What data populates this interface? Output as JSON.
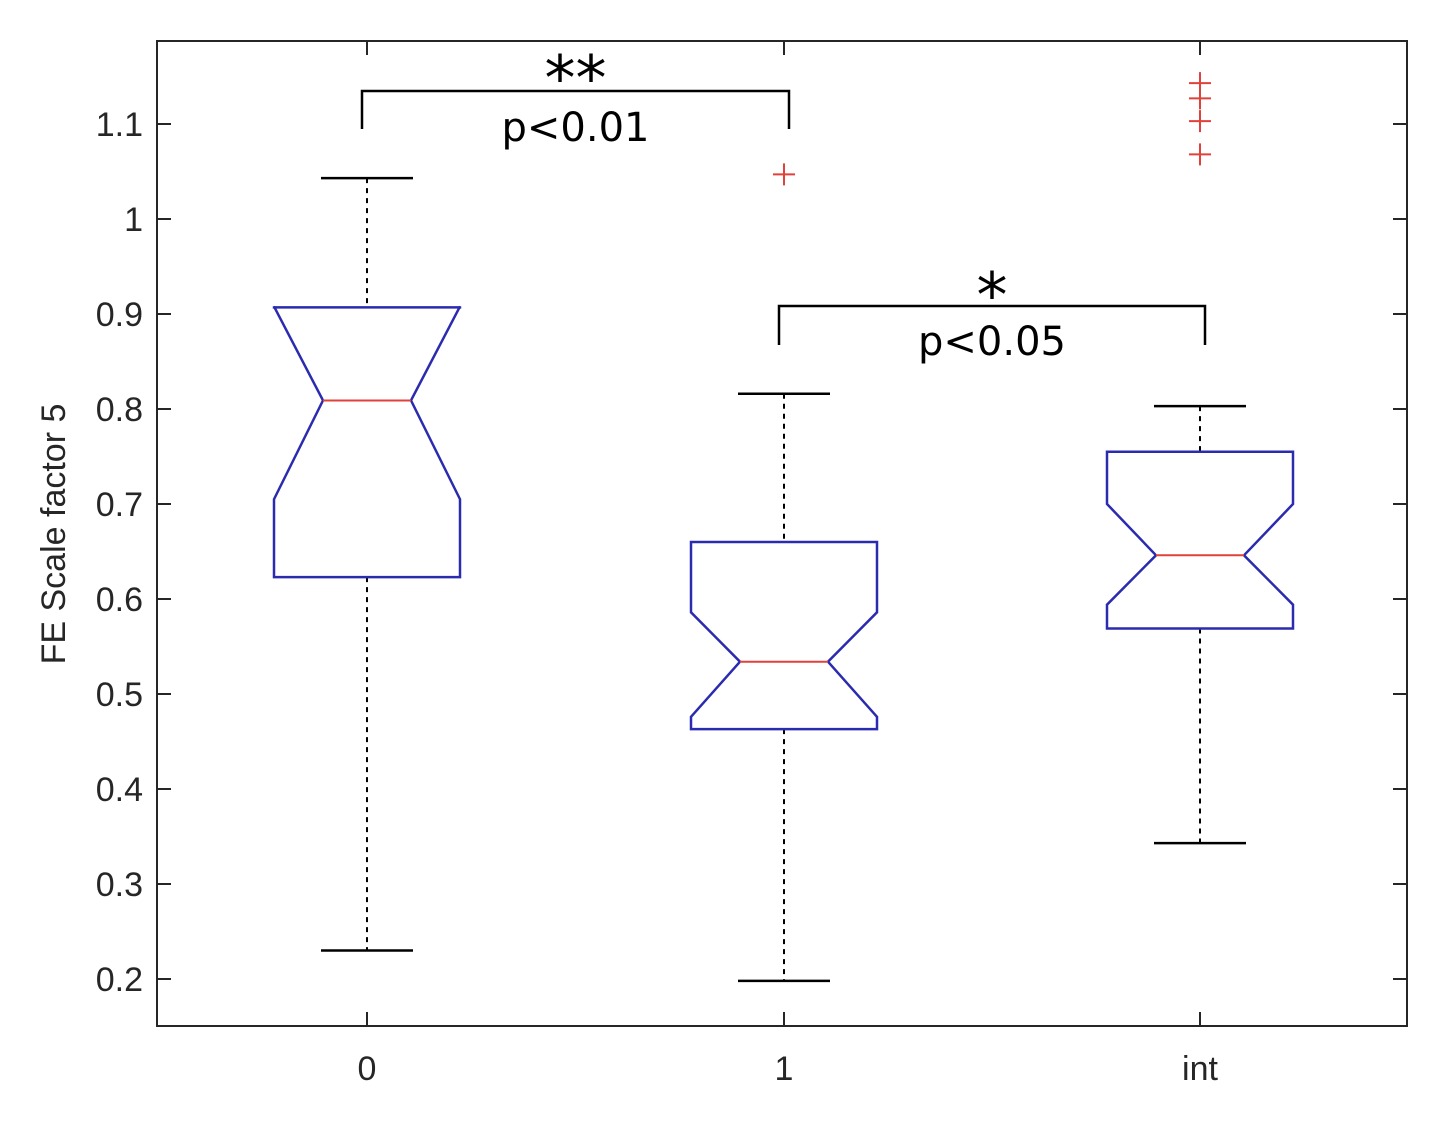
{
  "chart_data": {
    "type": "boxplot",
    "notched": true,
    "ylabel": "FE Scale factor 5",
    "xlabel": "",
    "categories": [
      "0",
      "1",
      "int"
    ],
    "ylim": [
      0.15,
      1.19
    ],
    "yticks": [
      0.2,
      0.3,
      0.4,
      0.5,
      0.6,
      0.7,
      0.8,
      0.9,
      1,
      1.1
    ],
    "yticklabels": [
      "0.2",
      "0.3",
      "0.4",
      "0.5",
      "0.6",
      "0.7",
      "0.8",
      "0.9",
      "1",
      "1.1"
    ],
    "grid": false,
    "boxes": [
      {
        "category": "0",
        "whisker_low": 0.23,
        "q1": 0.623,
        "notch_low": 0.705,
        "median": 0.809,
        "notch_high": 0.908,
        "q3": 0.907,
        "whisker_high": 1.043,
        "outliers": []
      },
      {
        "category": "1",
        "whisker_low": 0.198,
        "q1": 0.463,
        "notch_low": 0.476,
        "median": 0.534,
        "notch_high": 0.586,
        "q3": 0.66,
        "whisker_high": 0.816,
        "outliers": [
          1.047
        ]
      },
      {
        "category": "int",
        "whisker_low": 0.343,
        "q1": 0.569,
        "notch_low": 0.594,
        "median": 0.646,
        "notch_high": 0.7,
        "q3": 0.755,
        "whisker_high": 0.803,
        "outliers": [
          1.068,
          1.103,
          1.127,
          1.143
        ]
      }
    ],
    "annotations": [
      {
        "from": "0",
        "to": "1",
        "stars": "**",
        "text": "p<0.01"
      },
      {
        "from": "1",
        "to": "int",
        "stars": "*",
        "text": "p<0.05"
      }
    ],
    "colors": {
      "box": "#2b2bb0",
      "median": "#e0413a",
      "outlier": "#e0413a",
      "whisker": "#000000",
      "axis": "#262626"
    }
  }
}
